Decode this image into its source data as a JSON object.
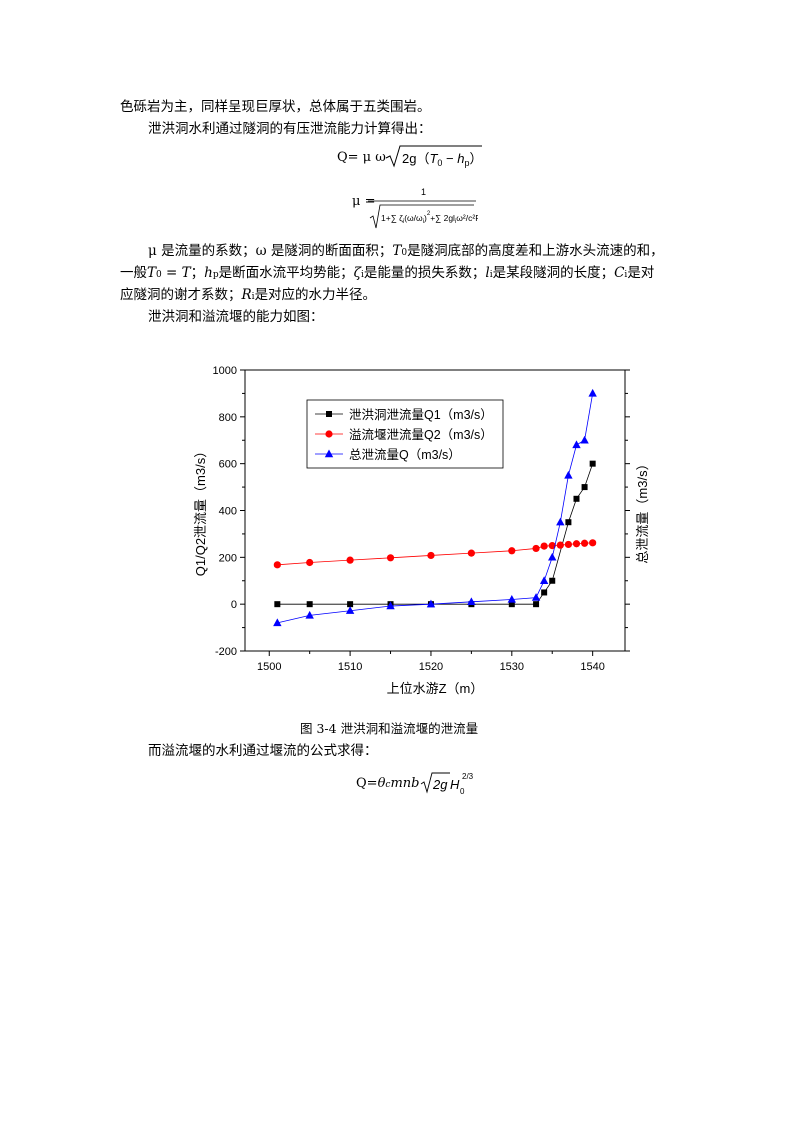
{
  "text": {
    "line1": "色砾岩为主，同样呈现巨厚状，总体属于五类围岩。",
    "line2": "泄洪洞水利通过隧洞的有压泄流能力计算得出：",
    "para_a": "μ 是流量的系数；ω 是隧洞的断面面积；",
    "para_b": "是隧洞底部的高度差和上游水头流速的和，",
    "para_c": "一般",
    "para_d": "；",
    "para_e": "是断面水流平均势能；",
    "para_f": "是能量的损失系数；",
    "para_g": "是某段隧洞的长度；",
    "para_h": "是对",
    "para_i": "应隧洞的谢才系数；",
    "para_j": "是对应的水力半径。",
    "line_cap_intro": "泄洪洞和溢流堰的能力如图：",
    "caption": "图 3-4  泄洪洞和溢流堰的泄流量",
    "line_weir": "而溢流堰的水利通过堰流的公式求得："
  },
  "formulas": {
    "q1": "Q= μ  ω",
    "mu": "μ =",
    "q2": "Q="
  },
  "chart_data": {
    "type": "line",
    "xlabel": "上位水游Z（m）",
    "ylabel": "Q1/Q2泄流量（m3/s）",
    "ylabel_right": "总泄流量（m3/s）",
    "xlim": [
      1497,
      1544
    ],
    "ylim": [
      -200,
      1000
    ],
    "x_ticks": [
      1500,
      1510,
      1520,
      1530,
      1540
    ],
    "y_ticks": [
      -200,
      0,
      200,
      400,
      600,
      800,
      1000
    ],
    "legend_position": "top-left",
    "series": [
      {
        "name": "泄洪洞泄流量Q1（m3/s）",
        "color": "#000000",
        "marker": "square",
        "x": [
          1501,
          1505,
          1510,
          1515,
          1520,
          1525,
          1530,
          1533,
          1534,
          1535,
          1537,
          1538,
          1539,
          1540
        ],
        "y": [
          0,
          0,
          0,
          0,
          0,
          0,
          0,
          0,
          50,
          100,
          350,
          450,
          500,
          600
        ]
      },
      {
        "name": "溢流堰泄流量Q2（m3/s）",
        "color": "#ff0000",
        "marker": "circle",
        "x": [
          1501,
          1505,
          1510,
          1515,
          1520,
          1525,
          1530,
          1533,
          1534,
          1535,
          1536,
          1537,
          1538,
          1539,
          1540
        ],
        "y": [
          168,
          178,
          188,
          198,
          208,
          218,
          228,
          238,
          248,
          250,
          252,
          255,
          258,
          260,
          262
        ]
      },
      {
        "name": "总泄流量Q（m3/s）",
        "color": "#0000ff",
        "marker": "triangle",
        "x": [
          1501,
          1505,
          1510,
          1515,
          1520,
          1525,
          1530,
          1533,
          1534,
          1535,
          1536,
          1537,
          1538,
          1539,
          1540
        ],
        "y": [
          -80,
          -48,
          -28,
          -8,
          0,
          10,
          20,
          28,
          100,
          200,
          350,
          550,
          680,
          700,
          900
        ]
      }
    ]
  }
}
